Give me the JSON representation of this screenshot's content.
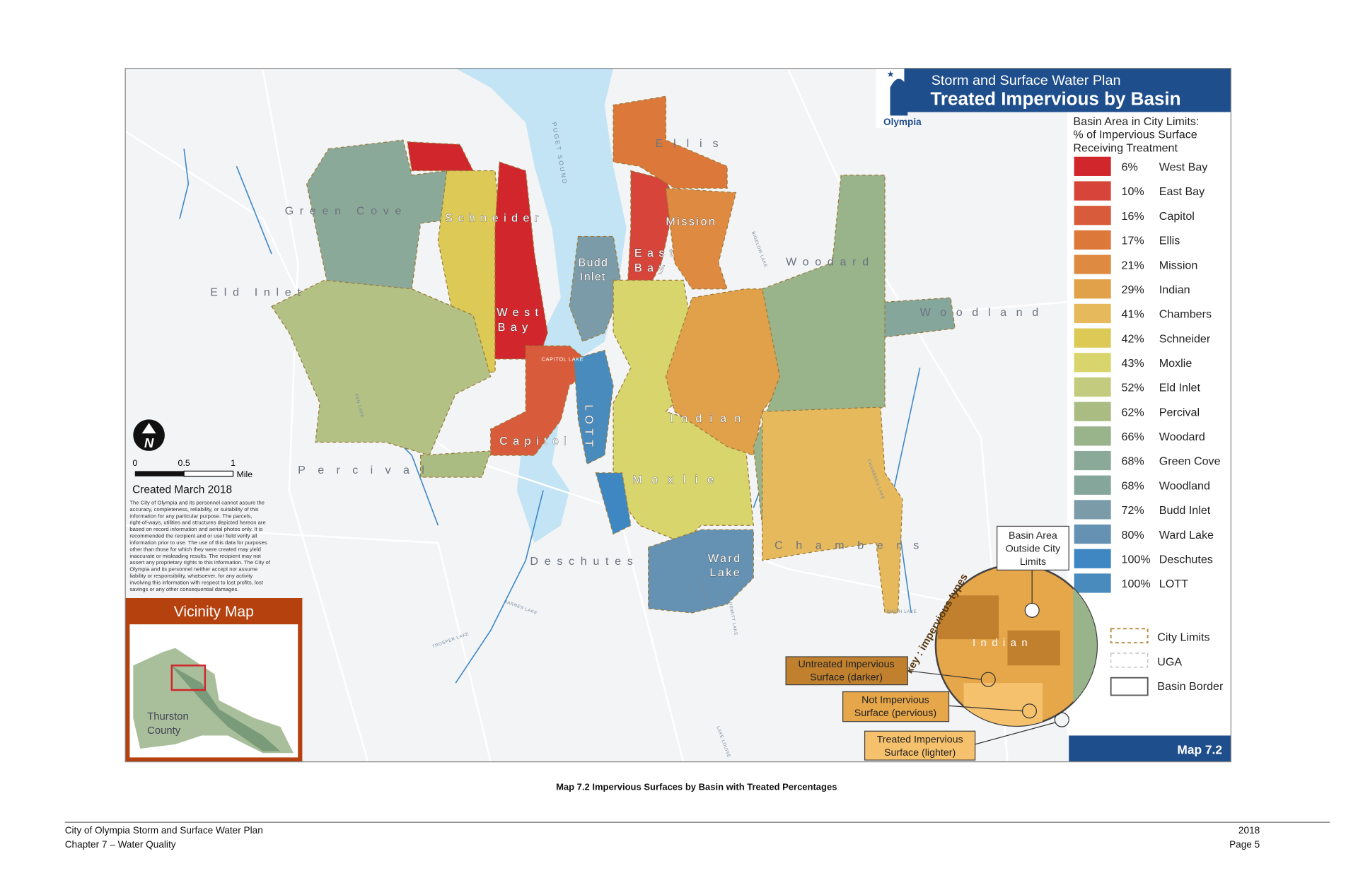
{
  "map": {
    "header": {
      "title": "Storm and Surface Water Plan",
      "subtitle": "Treated Impervious by Basin",
      "logo": "Olympia"
    },
    "legend": {
      "heading": [
        "Basin Area in City Limits:",
        "% of Impervious Surface",
        "Receiving Treatment"
      ],
      "items": [
        {
          "percent": "6%",
          "name": "West Bay",
          "color": "#d0262c"
        },
        {
          "percent": "10%",
          "name": "East Bay",
          "color": "#d6443a"
        },
        {
          "percent": "16%",
          "name": "Capitol",
          "color": "#d85c3b"
        },
        {
          "percent": "17%",
          "name": "Ellis",
          "color": "#dc783a"
        },
        {
          "percent": "21%",
          "name": "Mission",
          "color": "#df8a41"
        },
        {
          "percent": "29%",
          "name": "Indian",
          "color": "#e1a04a"
        },
        {
          "percent": "41%",
          "name": "Chambers",
          "color": "#e6b95c"
        },
        {
          "percent": "42%",
          "name": "Schneider",
          "color": "#dcc956"
        },
        {
          "percent": "43%",
          "name": "Moxlie",
          "color": "#d8d56c"
        },
        {
          "percent": "52%",
          "name": "Eld Inlet",
          "color": "#c3cc7e"
        },
        {
          "percent": "62%",
          "name": "Percival",
          "color": "#abbc83"
        },
        {
          "percent": "66%",
          "name": "Woodard",
          "color": "#99b38b"
        },
        {
          "percent": "68%",
          "name": "Green Cove",
          "color": "#8ba998"
        },
        {
          "percent": "68%",
          "name": "Woodland",
          "color": "#85a69b"
        },
        {
          "percent": "72%",
          "name": "Budd Inlet",
          "color": "#7b9ba8"
        },
        {
          "percent": "80%",
          "name": "Ward Lake",
          "color": "#6592b2"
        },
        {
          "percent": "100%",
          "name": "Deschutes",
          "color": "#3e87c3"
        },
        {
          "percent": "100%",
          "name": "LOTT",
          "color": "#4a8bbd"
        }
      ],
      "lines": [
        "City Limits",
        "UGA",
        "Basin Border"
      ]
    },
    "basin_labels": [
      "Green Cove",
      "Schneider",
      "West",
      "Bay",
      "Budd",
      "Inlet",
      "East",
      "Bay",
      "Ellis",
      "Mission",
      "Woodard",
      "Woodland",
      "Eld Inlet",
      "Capitol",
      "LOTT",
      "Indian",
      "Moxlie",
      "Percival",
      "Deschutes",
      "Ward",
      "Lake",
      "Chambers"
    ],
    "water_labels": [
      "PUGET SOUND",
      "CAPITOL LAKE",
      "KEN LAKE",
      "CHAMBERS LAKE",
      "BARNES LAKE",
      "HEWITT LAKE",
      "BIGELOW LAKE",
      "WARD LAKE",
      "TROSPER LAKE",
      "SMITH LAKE",
      "LAKE LOUISE"
    ],
    "north": "N",
    "scale": {
      "ticks": [
        "0",
        "0.5",
        "1"
      ],
      "unit": "Mile"
    },
    "created": "Created March 2018",
    "disclaimer": [
      "The City of Olympia and its personnel cannot assure the",
      "accuracy, completeness, reliability, or suitability of this",
      "information for any particular purpose. The parcels,",
      "right-of-ways, utilities and structures depicted hereon are",
      "based on record information and aerial photos only. It is",
      "recommended the recipient and or user field verify all",
      "information prior to use. The use of this data for purposes",
      "other than those for which they were created may yield",
      "inaccurate or misleading results. The recipient may not",
      "assert any proprietary rights to this information. The City of",
      "Olympia and its personnel neither accept nor assume",
      "liability or responsibility, whatsoever, for any activity",
      "involving this information with respect to lost profits, lost",
      "savings or any other consequential damages."
    ],
    "vicinity": {
      "title": "Vicinity Map",
      "label": [
        "Thurston",
        "County"
      ]
    },
    "inset": {
      "key": "key : impervious types",
      "basin": "Indian",
      "outside": [
        "Basin Area",
        "Outside City",
        "Limits"
      ],
      "untreated": [
        "Untreated Impervious",
        "Surface (darker)"
      ],
      "pervious": [
        "Not Impervious",
        "Surface (pervious)"
      ],
      "treated": [
        "Treated Impervious",
        "Surface (lighter)"
      ]
    },
    "map_number": "Map 7.2"
  },
  "caption": "Map 7.2 Impervious Surfaces by Basin with Treated Percentages",
  "footer": {
    "left": [
      "City of Olympia Storm and Surface Water Plan",
      "Chapter 7 – Water Quality"
    ],
    "right": [
      "2018",
      "Page 5"
    ]
  }
}
